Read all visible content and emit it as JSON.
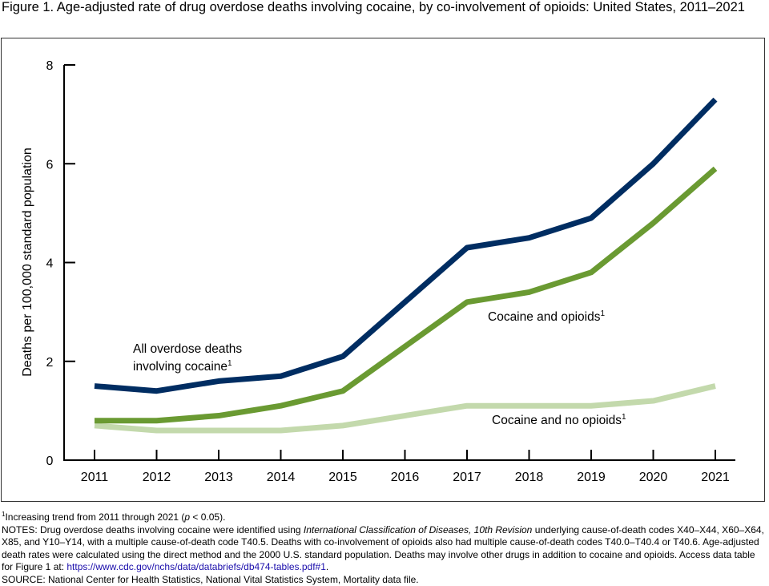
{
  "figure": {
    "title": "Figure 1. Age-adjusted rate of drug overdose deaths involving cocaine, by co-involvement of opioids: United States, 2011–2021"
  },
  "chart_data": {
    "type": "line",
    "title": "Figure 1. Age-adjusted rate of drug overdose deaths involving cocaine, by co-involvement of opioids: United States, 2011–2021",
    "xlabel": "",
    "ylabel": "Deaths per 100,000 standard population",
    "ylim": [
      0,
      8
    ],
    "yticks": [
      "0",
      "2",
      "4",
      "6",
      "8"
    ],
    "ytick_values": [
      0,
      2,
      4,
      6,
      8
    ],
    "categories": [
      "2011",
      "2012",
      "2013",
      "2014",
      "2015",
      "2016",
      "2017",
      "2018",
      "2019",
      "2020",
      "2021"
    ],
    "grid": false,
    "series": [
      {
        "name": "All overdose deaths involving cocaine",
        "label_line1": "All overdose deaths",
        "label_line2": "involving cocaine",
        "footnote": "1",
        "color": "#002d62",
        "values": [
          1.5,
          1.4,
          1.6,
          1.7,
          2.1,
          3.2,
          4.3,
          4.5,
          4.9,
          6.0,
          7.3
        ]
      },
      {
        "name": "Cocaine and opioids",
        "label_line1": "Cocaine and opioids",
        "footnote": "1",
        "color": "#6a9a32",
        "values": [
          0.8,
          0.8,
          0.9,
          1.1,
          1.4,
          2.3,
          3.2,
          3.4,
          3.8,
          4.8,
          5.9
        ]
      },
      {
        "name": "Cocaine and no opioids",
        "label_line1": "Cocaine and no opioids",
        "footnote": "1",
        "color": "#c3d9ac",
        "values": [
          0.7,
          0.6,
          0.6,
          0.6,
          0.7,
          0.9,
          1.1,
          1.1,
          1.1,
          1.2,
          1.5
        ]
      }
    ]
  },
  "notes": {
    "footnote_mark": "1",
    "footnote_pre": "Increasing trend from 2011 through 2021 (",
    "footnote_p": "p",
    "footnote_post": " < 0.05).",
    "notes_pre": "NOTES: Drug overdose deaths involving cocaine were identified using ",
    "notes_icd": "International Classification of Diseases, 10th Revision",
    "notes_post": " underlying cause-of-death codes X40–X44, X60–X64, X85, and Y10–Y14, with a multiple cause-of-death code T40.5. Deaths with co-involvement of opioids also had multiple cause-of-death codes T40.0–T40.4 or T40.6. Age-adjusted death rates were calculated using the direct method and the 2000 U.S. standard population. Deaths may involve other drugs in addition to cocaine and opioids. Access data table for Figure 1 at: ",
    "link_text": "https://www.cdc.gov/nchs/data/databriefs/db474-tables.pdf#1",
    "notes_end": ".",
    "source": "SOURCE: National Center for Health Statistics, National Vital Statistics System, Mortality data file."
  }
}
